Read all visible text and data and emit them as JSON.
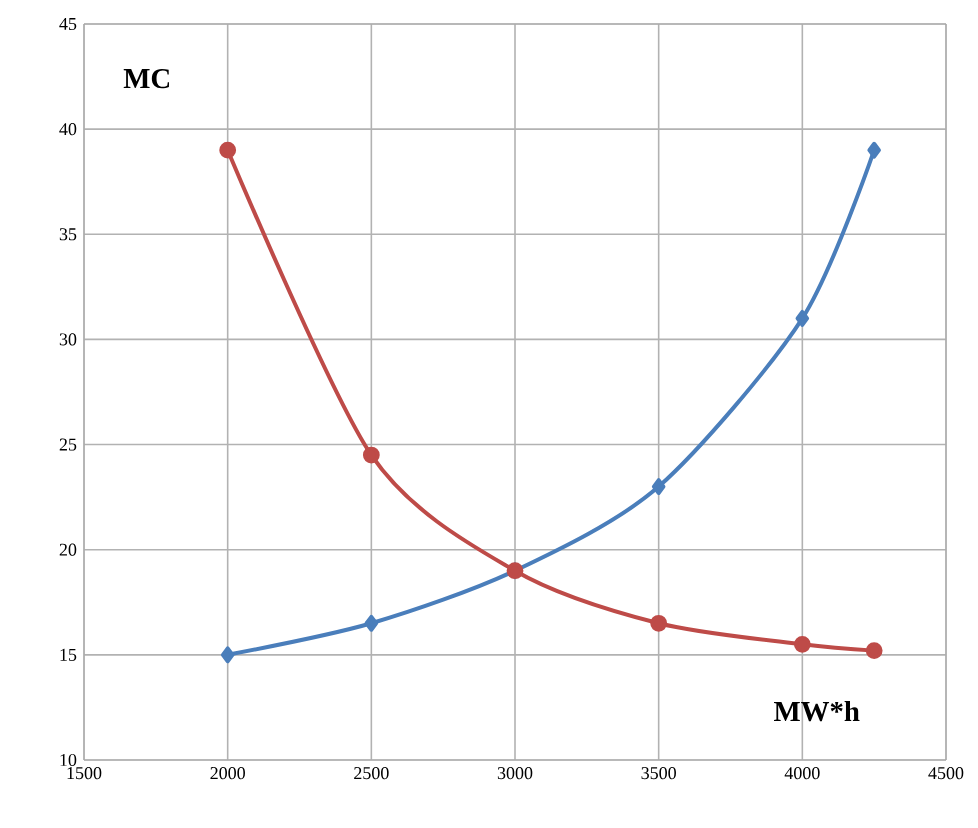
{
  "chart_data": {
    "type": "line",
    "xlabel": "MW*h",
    "ylabel": "MC",
    "x": [
      2000,
      2500,
      3000,
      3500,
      4000,
      4250
    ],
    "series": [
      {
        "color": "#4a7ebb",
        "marker": "diamond",
        "values": [
          15,
          16.5,
          19,
          23,
          31,
          39
        ]
      },
      {
        "color": "#be4b48",
        "marker": "circle",
        "values": [
          39,
          24.5,
          19,
          16.5,
          15.5,
          15.2
        ]
      }
    ],
    "xlim": [
      1500,
      4500
    ],
    "xticks": [
      1500,
      2000,
      2500,
      3000,
      3500,
      4000,
      4500
    ],
    "ylim": [
      10,
      45
    ],
    "yticks": [
      10,
      15,
      20,
      25,
      30,
      35,
      40,
      45
    ],
    "grid": true,
    "line_style": "solid"
  }
}
